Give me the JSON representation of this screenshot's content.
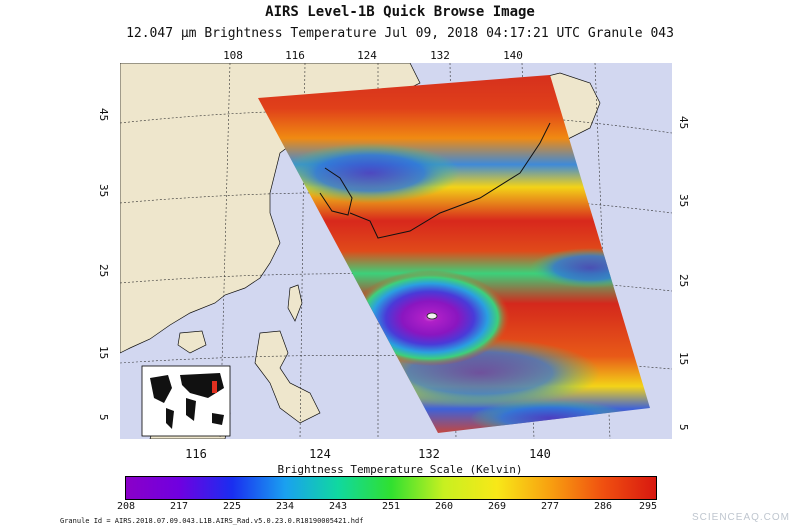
{
  "header": {
    "title": "AIRS Level-1B Quick Browse Image",
    "subtitle": "12.047 μm Brightness Temperature    Jul 09, 2018 04:17:21 UTC   Granule 043"
  },
  "map": {
    "top_longitude_ticks": [
      "108",
      "116",
      "124",
      "132",
      "140"
    ],
    "bottom_longitude_ticks": [
      "116",
      "124",
      "132",
      "140"
    ],
    "left_latitude_ticks": [
      "45",
      "35",
      "25",
      "15",
      "5"
    ],
    "right_latitude_ticks": [
      "45",
      "35",
      "25",
      "15",
      "5"
    ],
    "colors": {
      "ocean": "#d2d7f0",
      "land": "#eee6cc",
      "hot": "#d8281c",
      "cold": "#8a16c0"
    }
  },
  "colorbar": {
    "title": "Brightness Temperature Scale (Kelvin)",
    "labels": [
      "208",
      "217",
      "225",
      "234",
      "243",
      "251",
      "260",
      "269",
      "277",
      "286",
      "295"
    ]
  },
  "footer": {
    "granule_id": "Granule Id = AIRS.2018.07.09.043.L1B.AIRS_Rad.v5.0.23.0.R18190005421.hdf",
    "watermark": "SCIENCEAQ.COM"
  }
}
